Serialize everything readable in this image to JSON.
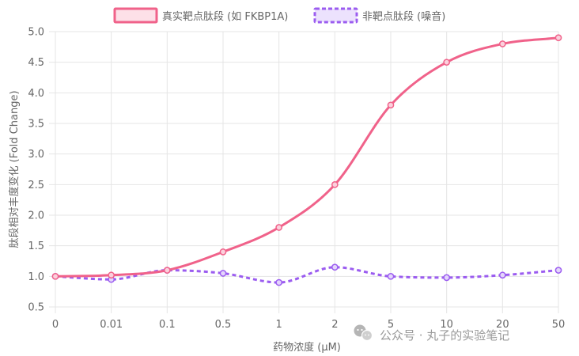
{
  "chart_data": {
    "type": "line",
    "categories": [
      "0",
      "0.01",
      "0.1",
      "0.5",
      "1",
      "2",
      "5",
      "10",
      "20",
      "50"
    ],
    "series": [
      {
        "name": "真实靶点肽段 (如 FKBP1A)",
        "values": [
          1.0,
          1.02,
          1.1,
          1.4,
          1.8,
          2.5,
          3.8,
          4.5,
          4.8,
          4.9
        ],
        "color": "#f0628a",
        "style": "solid"
      },
      {
        "name": "非靶点肽段 (噪音)",
        "values": [
          1.0,
          0.95,
          1.1,
          1.05,
          0.9,
          1.15,
          1.0,
          0.98,
          1.02,
          1.1
        ],
        "color": "#9b5cf0",
        "style": "dashed"
      }
    ],
    "xlabel": "药物浓度 (μM)",
    "ylabel": "肽段相对丰度变化 (Fold Change)",
    "ylim": [
      0.5,
      5.0
    ],
    "yticks": [
      "0.5",
      "1.0",
      "1.5",
      "2.0",
      "2.5",
      "3.0",
      "3.5",
      "4.0",
      "4.5",
      "5.0"
    ],
    "grid": true,
    "legend_position": "top-center"
  },
  "watermark": {
    "icon": "wechat-icon",
    "text": "公众号 · 丸子的实验笔记"
  }
}
